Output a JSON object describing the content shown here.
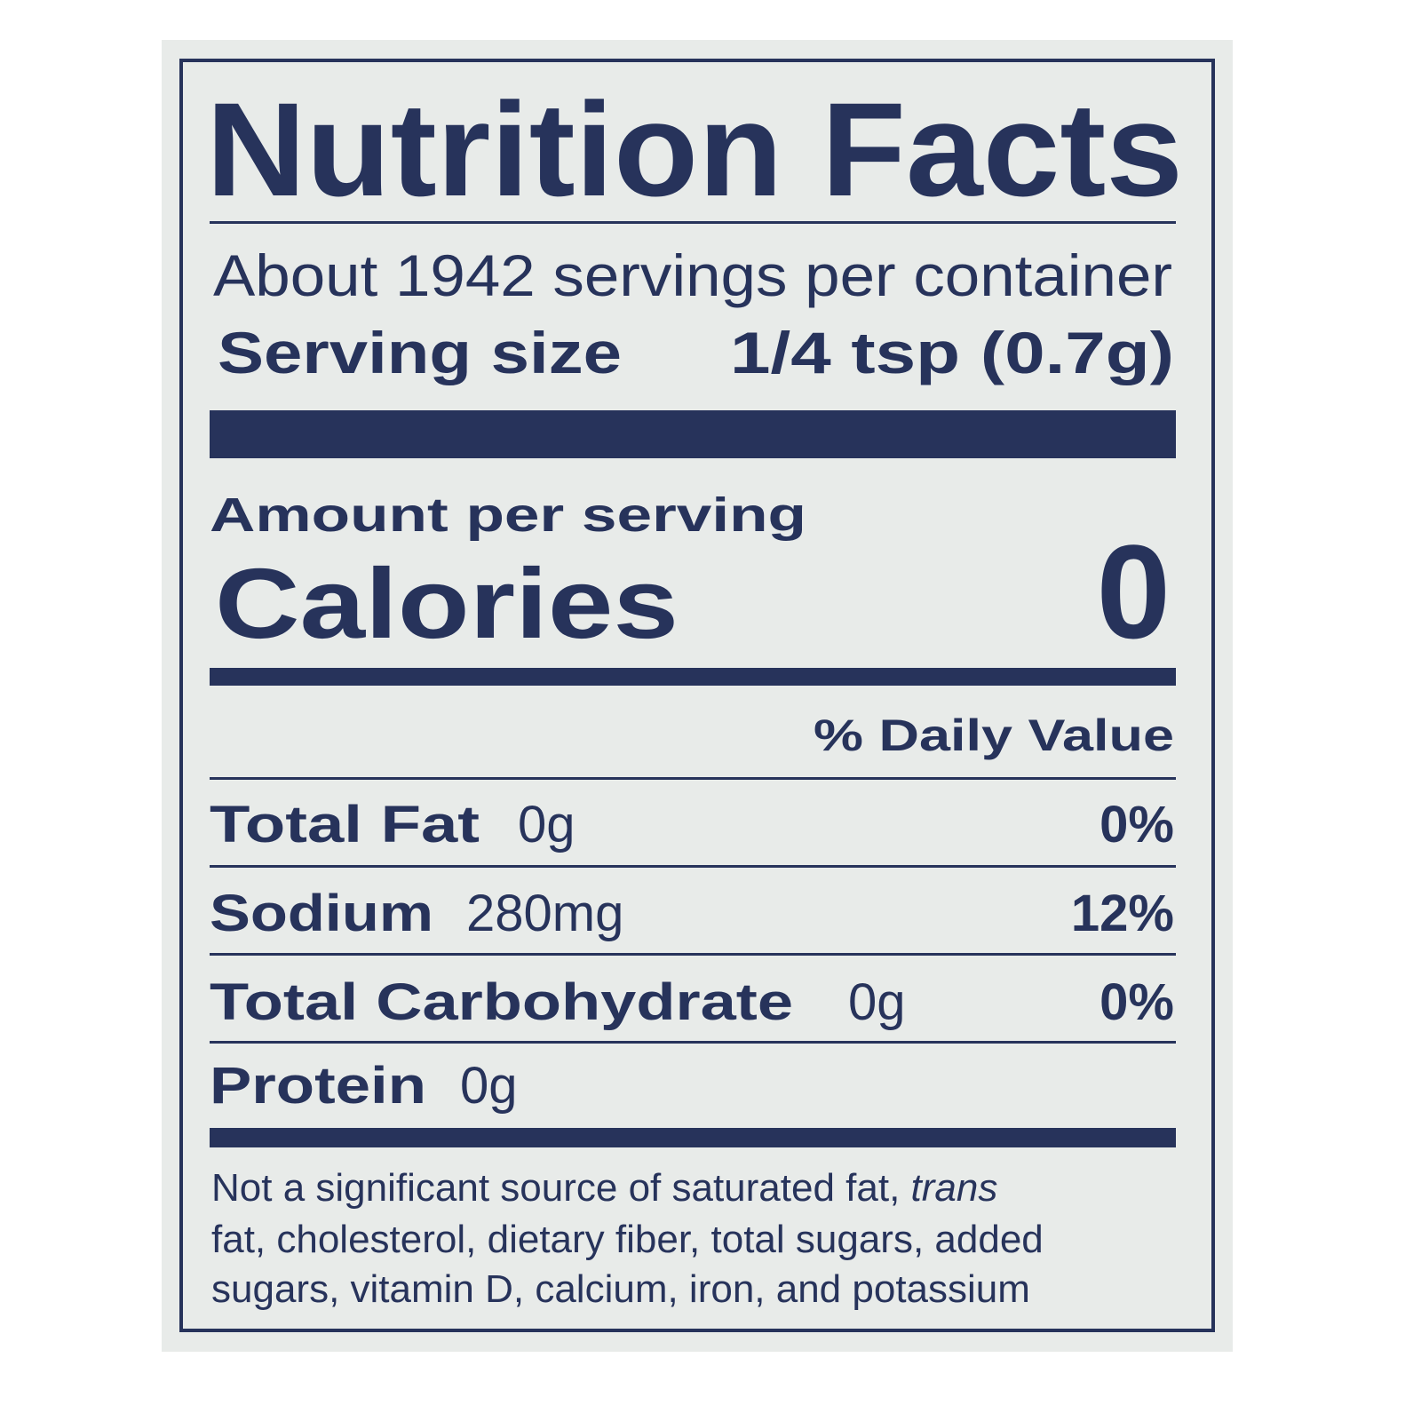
{
  "title": "Nutrition Facts",
  "servings": "About 1942 servings per container",
  "serving_size": {
    "label": "Serving size",
    "value": "1/4 tsp (0.7g)"
  },
  "amount_per_serving": "Amount per serving",
  "calories": {
    "label": "Calories",
    "value": 0
  },
  "daily_value_header": "% Daily Value",
  "nutrients": [
    {
      "name": "Total Fat",
      "amount": "0g",
      "dv": "0%"
    },
    {
      "name": "Sodium",
      "amount": "280mg",
      "dv": "12%"
    },
    {
      "name": "Total Carbohydrate",
      "amount": "0g",
      "dv": "0%"
    },
    {
      "name": "Protein",
      "amount": "0g"
    }
  ],
  "footnote": {
    "line1": "Not a significant source of saturated fat,",
    "italic": "trans",
    "line2": "fat, cholesterol, dietary fiber, total sugars, added",
    "line3": "sugars, vitamin D, calcium, iron, and potassium"
  }
}
